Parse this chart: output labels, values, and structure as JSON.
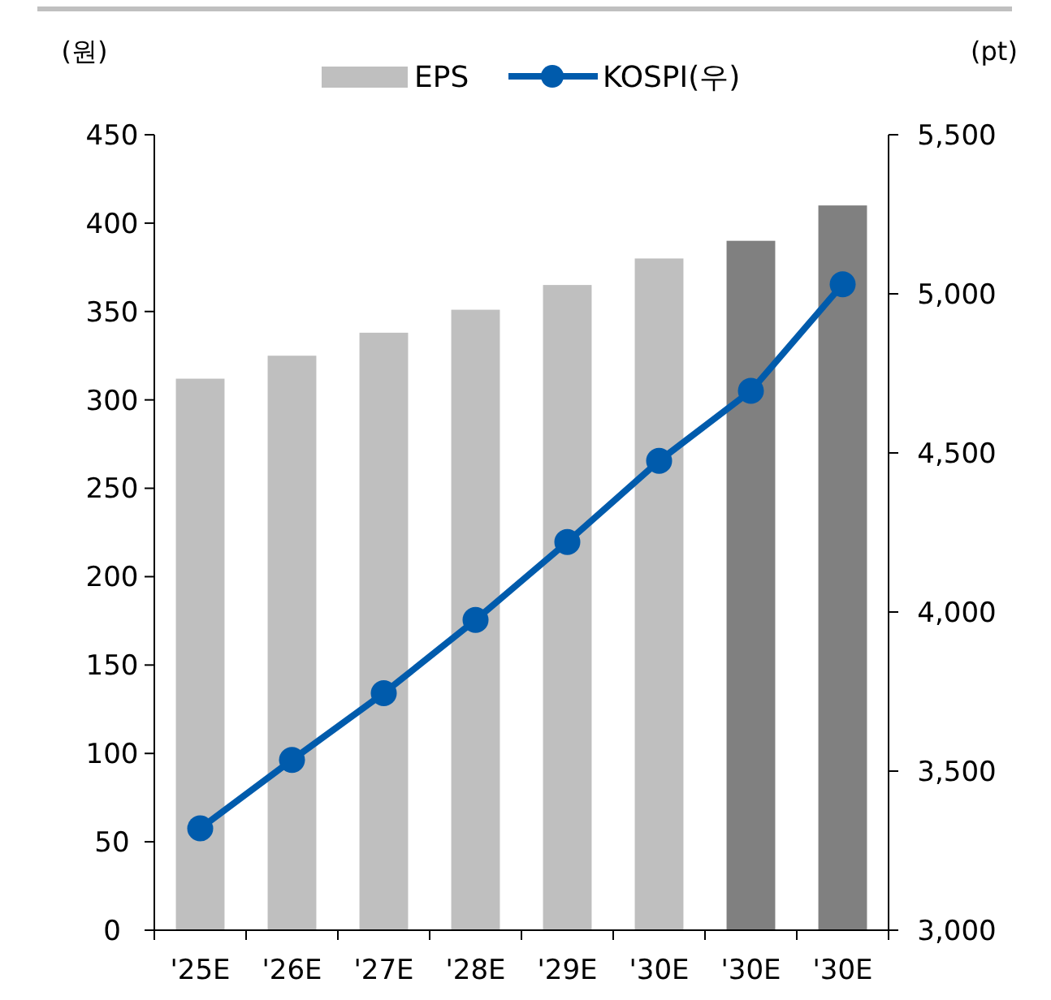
{
  "chart_data": {
    "type": "bar",
    "ylabel": "(원)",
    "y2label": "(pt)",
    "categories": [
      "'25E",
      "'26E",
      "'27E",
      "'28E",
      "'29E",
      "'30E",
      "'30E",
      "'30E"
    ],
    "series": [
      {
        "name": "EPS",
        "color": "#bfbfbf",
        "colors": [
          "#bfbfbf",
          "#bfbfbf",
          "#bfbfbf",
          "#bfbfbf",
          "#bfbfbf",
          "#bfbfbf",
          "#808080",
          "#808080"
        ],
        "values": [
          312,
          325,
          338,
          351,
          365,
          380,
          390,
          410
        ]
      },
      {
        "name": "KOSPI(우)",
        "type": "line",
        "axis": "y2",
        "color": "#005bac",
        "marker": "circle",
        "values": [
          3320,
          3535,
          3745,
          3975,
          4220,
          4475,
          4695,
          5030
        ]
      }
    ],
    "ylim": [
      0,
      450
    ],
    "yticks": [
      0,
      50,
      100,
      150,
      200,
      250,
      300,
      350,
      400,
      450
    ],
    "y2lim": [
      3000,
      5500
    ],
    "y2ticks": [
      {
        "value": 3000,
        "label": "3,000"
      },
      {
        "value": 3500,
        "label": "3,500"
      },
      {
        "value": 4000,
        "label": "4,000"
      },
      {
        "value": 4500,
        "label": "4,500"
      },
      {
        "value": 5000,
        "label": "5,000"
      },
      {
        "value": 5500,
        "label": "5,500"
      }
    ],
    "legend": "top",
    "grid": false
  }
}
